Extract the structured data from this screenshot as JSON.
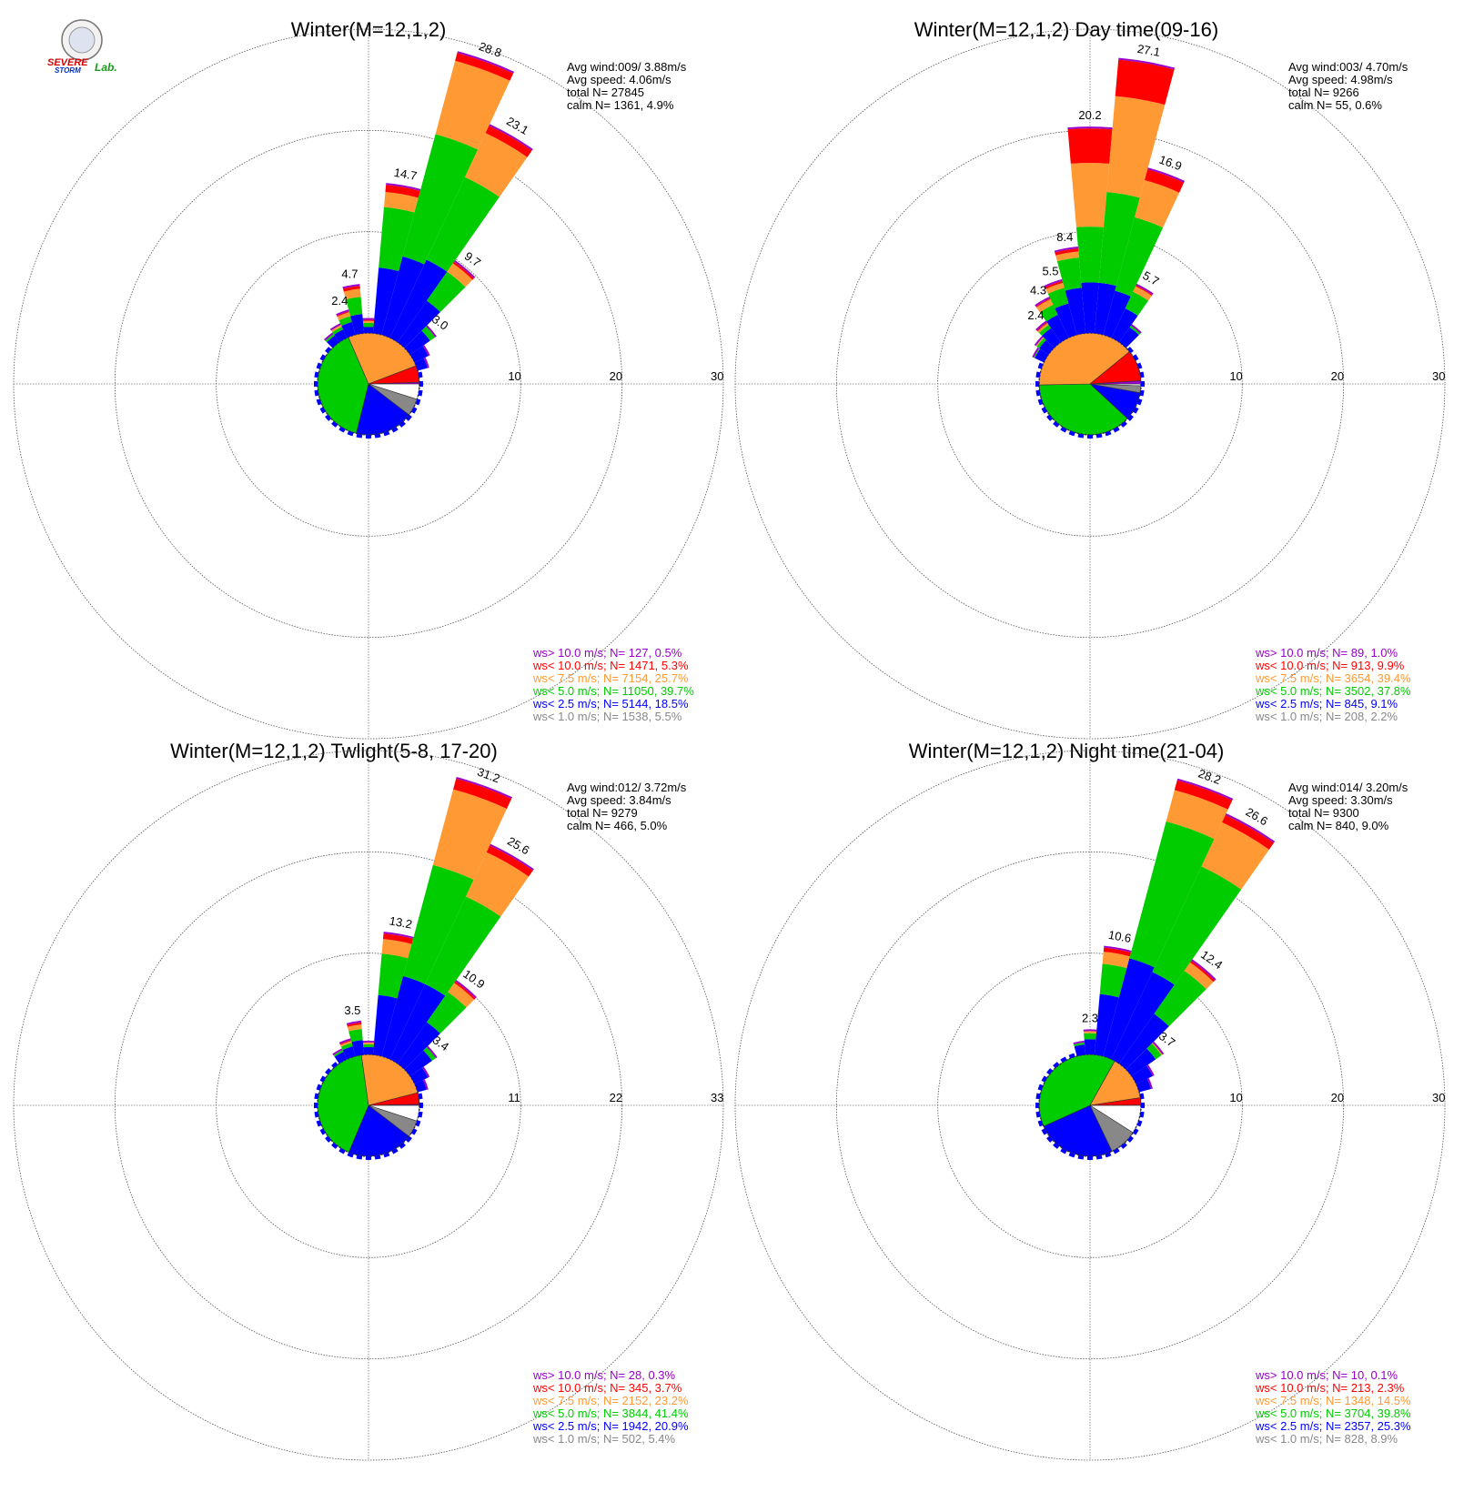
{
  "colors": {
    "gt10": "#9900cc",
    "lt10": "#ff0000",
    "lt7_5": "#ff9933",
    "lt5": "#00cc00",
    "lt2_5": "#0000ff",
    "lt1": "#888888",
    "calm": "#ffffff"
  },
  "logo": {
    "line1": "SEVERE",
    "line2": "STORM",
    "line3": "Lab."
  },
  "chart_data": [
    {
      "type": "windrose",
      "title": "Winter(M=12,1,2)",
      "radial_ticks": [
        "10",
        "20",
        "30"
      ],
      "rmax": 30,
      "stats": [
        "Avg wind:009/ 3.88m/s",
        "Avg speed: 4.06m/s",
        "total N=       27845",
        "calm N=   1361,   4.9%"
      ],
      "legend": [
        {
          "text": "ws> 10.0 m/s; N=    127,  0.5%",
          "color": "#9900cc"
        },
        {
          "text": "ws< 10.0 m/s; N=  1471,  5.3%",
          "color": "#ff0000"
        },
        {
          "text": "ws<  7.5 m/s; N=  7154, 25.7%",
          "color": "#ff9933"
        },
        {
          "text": "ws<  5.0 m/s; N= 11050, 39.7%",
          "color": "#00cc00"
        },
        {
          "text": "ws<  2.5 m/s; N=  5144, 18.5%",
          "color": "#0000ff"
        },
        {
          "text": "ws<  1.0 m/s; N=  1538,  5.5%",
          "color": "#888888"
        }
      ],
      "pie": [
        4.9,
        5.5,
        18.5,
        39.7,
        25.7,
        5.3,
        0.5
      ],
      "bars": [
        {
          "dir": 0,
          "total": 1.3,
          "cum": [
            0.6,
            1.0,
            1.2,
            1.3
          ]
        },
        {
          "dir": 10,
          "total": 14.7,
          "cum": [
            6.5,
            12.5,
            14.0,
            14.7
          ],
          "label": "14.7"
        },
        {
          "dir": 20,
          "total": 28.8,
          "cum": [
            8.0,
            20.5,
            28.0,
            28.8
          ],
          "label": "28.8"
        },
        {
          "dir": 30,
          "total": 23.1,
          "cum": [
            8.5,
            17.5,
            22.3,
            23.1
          ],
          "label": "23.1"
        },
        {
          "dir": 40,
          "total": 9.7,
          "cum": [
            5.0,
            8.5,
            9.5,
            9.7
          ],
          "label": "9.7"
        },
        {
          "dir": 50,
          "total": 3.0,
          "cum": [
            2.4,
            3.0,
            3.0,
            3.0
          ],
          "label": "3.0"
        },
        {
          "dir": 60,
          "total": 1.5,
          "cum": [
            1.5,
            1.5,
            1.5,
            1.5
          ]
        },
        {
          "dir": 70,
          "total": 1.0,
          "cum": [
            1.0,
            1.0,
            1.0,
            1.0
          ]
        },
        {
          "dir": 350,
          "total": 4.7,
          "cum": [
            1.9,
            3.6,
            4.4,
            4.7
          ],
          "label": "4.7"
        },
        {
          "dir": 340,
          "total": 2.4,
          "cum": [
            1.3,
            1.9,
            2.3,
            2.4
          ],
          "label": "2.4"
        },
        {
          "dir": 330,
          "total": 1.4,
          "cum": [
            0.9,
            1.2,
            1.4,
            1.4
          ]
        },
        {
          "dir": 320,
          "total": 1.0,
          "cum": [
            0.8,
            1.0,
            1.0,
            1.0
          ]
        }
      ]
    },
    {
      "type": "windrose",
      "title": "Winter(M=12,1,2) Day time(09-16)",
      "radial_ticks": [
        "10",
        "20",
        "30"
      ],
      "rmax": 30,
      "stats": [
        "Avg wind:003/ 4.70m/s",
        "Avg speed: 4.98m/s",
        "total N=        9266",
        "calm N=     55,   0.6%"
      ],
      "legend": [
        {
          "text": "ws> 10.0 m/s; N=     89,  1.0%",
          "color": "#9900cc"
        },
        {
          "text": "ws< 10.0 m/s; N=    913,  9.9%",
          "color": "#ff0000"
        },
        {
          "text": "ws<  7.5 m/s; N=  3654, 39.4%",
          "color": "#ff9933"
        },
        {
          "text": "ws<  5.0 m/s; N=  3502, 37.8%",
          "color": "#00cc00"
        },
        {
          "text": "ws<  2.5 m/s; N=    845,  9.1%",
          "color": "#0000ff"
        },
        {
          "text": "ws<  1.0 m/s; N=    208,  2.2%",
          "color": "#888888"
        }
      ],
      "pie": [
        0.6,
        2.2,
        9.1,
        37.8,
        39.4,
        9.9,
        1.0
      ],
      "bars": [
        {
          "dir": 0,
          "total": 20.2,
          "cum": [
            5.0,
            10.5,
            16.8,
            20.2
          ],
          "label": "20.2"
        },
        {
          "dir": 10,
          "total": 27.1,
          "cum": [
            5.0,
            14.0,
            23.5,
            27.1
          ],
          "label": "27.1"
        },
        {
          "dir": 20,
          "total": 16.9,
          "cum": [
            4.5,
            12.0,
            15.8,
            16.9
          ],
          "label": "16.9"
        },
        {
          "dir": 30,
          "total": 5.7,
          "cum": [
            3.2,
            5.0,
            5.6,
            5.7
          ],
          "label": "5.7"
        },
        {
          "dir": 40,
          "total": 2.0,
          "cum": [
            1.8,
            2.0,
            2.0,
            2.0
          ]
        },
        {
          "dir": 350,
          "total": 8.4,
          "cum": [
            4.5,
            7.5,
            8.1,
            8.4
          ],
          "label": "8.4"
        },
        {
          "dir": 340,
          "total": 5.5,
          "cum": [
            3.2,
            4.8,
            5.3,
            5.5
          ],
          "label": "5.5"
        },
        {
          "dir": 330,
          "total": 4.3,
          "cum": [
            2.5,
            3.6,
            4.2,
            4.3
          ],
          "label": "4.3"
        },
        {
          "dir": 320,
          "total": 2.4,
          "cum": [
            1.7,
            2.1,
            2.3,
            2.4
          ],
          "label": "2.4"
        },
        {
          "dir": 310,
          "total": 1.5,
          "cum": [
            1.1,
            1.4,
            1.5,
            1.5
          ]
        },
        {
          "dir": 300,
          "total": 1.1,
          "cum": [
            1.0,
            1.1,
            1.1,
            1.1
          ]
        }
      ]
    },
    {
      "type": "windrose",
      "title": "Winter(M=12,1,2) Twlight(5-8, 17-20)",
      "radial_ticks": [
        "11",
        "22",
        "33"
      ],
      "rmax": 33,
      "stats": [
        "Avg wind:012/ 3.72m/s",
        "Avg speed: 3.84m/s",
        "total N=        9279",
        "calm N=    466,   5.0%"
      ],
      "legend": [
        {
          "text": "ws> 10.0 m/s; N=     28,  0.3%",
          "color": "#9900cc"
        },
        {
          "text": "ws< 10.0 m/s; N=    345,  3.7%",
          "color": "#ff0000"
        },
        {
          "text": "ws<  7.5 m/s; N=  2152, 23.2%",
          "color": "#ff9933"
        },
        {
          "text": "ws<  5.0 m/s; N=  3844, 41.4%",
          "color": "#00cc00"
        },
        {
          "text": "ws<  2.5 m/s; N=  1942, 20.9%",
          "color": "#0000ff"
        },
        {
          "text": "ws<  1.0 m/s; N=    502,  5.4%",
          "color": "#888888"
        }
      ],
      "pie": [
        5.0,
        5.4,
        20.9,
        41.4,
        23.2,
        3.7,
        0.3
      ],
      "bars": [
        {
          "dir": 0,
          "total": 1.3,
          "cum": [
            0.8,
            1.1,
            1.3,
            1.3
          ]
        },
        {
          "dir": 10,
          "total": 13.2,
          "cum": [
            6.5,
            11.0,
            12.6,
            13.2
          ],
          "label": "13.2"
        },
        {
          "dir": 20,
          "total": 31.2,
          "cum": [
            9.0,
            21.5,
            30.0,
            31.2
          ],
          "label": "31.2"
        },
        {
          "dir": 30,
          "total": 25.6,
          "cum": [
            9.0,
            19.5,
            24.8,
            25.6
          ],
          "label": "25.6"
        },
        {
          "dir": 40,
          "total": 10.9,
          "cum": [
            5.5,
            9.5,
            10.7,
            10.9
          ],
          "label": "10.9"
        },
        {
          "dir": 50,
          "total": 3.4,
          "cum": [
            2.9,
            3.4,
            3.4,
            3.4
          ],
          "label": "3.4"
        },
        {
          "dir": 60,
          "total": 1.6,
          "cum": [
            1.6,
            1.6,
            1.6,
            1.6
          ]
        },
        {
          "dir": 70,
          "total": 1.0,
          "cum": [
            1.0,
            1.0,
            1.0,
            1.0
          ]
        },
        {
          "dir": 350,
          "total": 3.5,
          "cum": [
            1.6,
            2.8,
            3.3,
            3.5
          ],
          "label": "3.5"
        },
        {
          "dir": 340,
          "total": 1.8,
          "cum": [
            1.1,
            1.5,
            1.7,
            1.8
          ]
        },
        {
          "dir": 330,
          "total": 1.1,
          "cum": [
            0.9,
            1.1,
            1.1,
            1.1
          ]
        }
      ]
    },
    {
      "type": "windrose",
      "title": "Winter(M=12,1,2) Night time(21-04)",
      "radial_ticks": [
        "10",
        "20",
        "30"
      ],
      "rmax": 30,
      "stats": [
        "Avg wind:014/ 3.20m/s",
        "Avg speed: 3.30m/s",
        "total N=        9300",
        "calm N=    840,   9.0%"
      ],
      "legend": [
        {
          "text": "ws> 10.0 m/s; N=     10,  0.1%",
          "color": "#9900cc"
        },
        {
          "text": "ws< 10.0 m/s; N=    213,  2.3%",
          "color": "#ff0000"
        },
        {
          "text": "ws<  7.5 m/s; N=  1348, 14.5%",
          "color": "#ff9933"
        },
        {
          "text": "ws<  5.0 m/s; N=  3704, 39.8%",
          "color": "#00cc00"
        },
        {
          "text": "ws<  2.5 m/s; N=  2357, 25.3%",
          "color": "#0000ff"
        },
        {
          "text": "ws<  1.0 m/s; N=    828,  8.9%",
          "color": "#888888"
        }
      ],
      "pie": [
        9.0,
        8.9,
        25.3,
        39.8,
        14.5,
        2.3,
        0.1
      ],
      "bars": [
        {
          "dir": 0,
          "total": 2.3,
          "cum": [
            1.5,
            2.1,
            2.3,
            2.3
          ],
          "label": "2.3"
        },
        {
          "dir": 10,
          "total": 10.6,
          "cum": [
            6.0,
            9.0,
            10.2,
            10.6
          ],
          "label": "10.6"
        },
        {
          "dir": 20,
          "total": 28.2,
          "cum": [
            10.0,
            24.0,
            27.2,
            28.2
          ],
          "label": "28.2"
        },
        {
          "dir": 30,
          "total": 26.6,
          "cum": [
            9.5,
            21.0,
            25.8,
            26.6
          ],
          "label": "26.6"
        },
        {
          "dir": 40,
          "total": 12.4,
          "cum": [
            6.0,
            11.2,
            12.2,
            12.4
          ],
          "label": "12.4"
        },
        {
          "dir": 50,
          "total": 3.7,
          "cum": [
            2.9,
            3.6,
            3.7,
            3.7
          ],
          "label": "3.7"
        },
        {
          "dir": 60,
          "total": 1.8,
          "cum": [
            1.8,
            1.8,
            1.8,
            1.8
          ]
        },
        {
          "dir": 70,
          "total": 1.2,
          "cum": [
            1.2,
            1.2,
            1.2,
            1.2
          ]
        },
        {
          "dir": 350,
          "total": 1.2,
          "cum": [
            1.0,
            1.2,
            1.2,
            1.2
          ]
        }
      ]
    }
  ]
}
